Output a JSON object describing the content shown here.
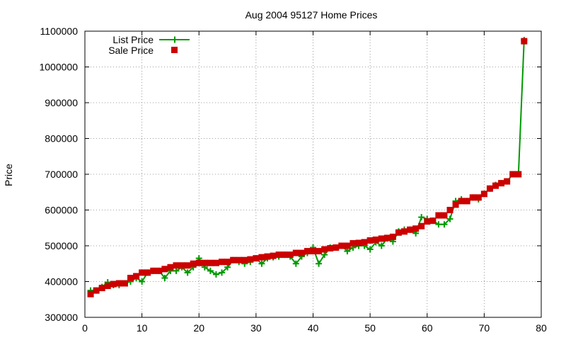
{
  "chart_data": {
    "type": "line",
    "title": "Aug 2004 95127 Home Prices",
    "xlabel": "",
    "ylabel": "Price",
    "xlim": [
      0,
      80
    ],
    "ylim": [
      300000,
      1100000
    ],
    "grid": true,
    "legend_position": "top-left",
    "x_ticks": [
      "0",
      "10",
      "20",
      "30",
      "40",
      "50",
      "60",
      "70",
      "80"
    ],
    "y_ticks": [
      "300000",
      "400000",
      "500000",
      "600000",
      "700000",
      "800000",
      "900000",
      "1000000",
      "1100000"
    ],
    "colors": {
      "list": "#009900",
      "sale": "#cc0000"
    },
    "series": [
      {
        "name": "List Price",
        "style": "linespoints",
        "marker": "plus",
        "x": [
          1,
          2,
          3,
          4,
          5,
          6,
          7,
          8,
          9,
          10,
          11,
          12,
          13,
          14,
          15,
          16,
          17,
          18,
          19,
          20,
          21,
          22,
          23,
          24,
          25,
          26,
          27,
          28,
          29,
          30,
          31,
          32,
          33,
          34,
          35,
          36,
          37,
          38,
          39,
          40,
          41,
          42,
          43,
          44,
          45,
          46,
          47,
          48,
          49,
          50,
          51,
          52,
          53,
          54,
          55,
          56,
          57,
          58,
          59,
          60,
          61,
          62,
          63,
          64,
          65,
          66,
          67,
          68,
          69,
          70,
          71,
          72,
          73,
          74,
          75,
          76,
          77
        ],
        "values": [
          375000,
          375000,
          385000,
          398000,
          390000,
          390000,
          395000,
          400000,
          410000,
          400000,
          425000,
          430000,
          430000,
          410000,
          430000,
          430000,
          440000,
          425000,
          440000,
          465000,
          440000,
          430000,
          420000,
          425000,
          440000,
          460000,
          455000,
          450000,
          455000,
          465000,
          450000,
          465000,
          468000,
          470000,
          475000,
          470000,
          450000,
          470000,
          480000,
          495000,
          450000,
          475000,
          495000,
          495000,
          500000,
          485000,
          495000,
          500000,
          500000,
          490000,
          510000,
          500000,
          520000,
          512000,
          540000,
          545000,
          545000,
          535000,
          580000,
          575000,
          570000,
          560000,
          560000,
          575000,
          625000,
          630000,
          625000,
          635000,
          630000,
          645000,
          660000,
          670000,
          675000,
          680000,
          700000,
          700000,
          1075000
        ]
      },
      {
        "name": "Sale Price",
        "style": "points",
        "marker": "square",
        "x": [
          1,
          2,
          3,
          4,
          5,
          6,
          7,
          8,
          9,
          10,
          11,
          12,
          13,
          14,
          15,
          16,
          17,
          18,
          19,
          20,
          21,
          22,
          23,
          24,
          25,
          26,
          27,
          28,
          29,
          30,
          31,
          32,
          33,
          34,
          35,
          36,
          37,
          38,
          39,
          40,
          41,
          42,
          43,
          44,
          45,
          46,
          47,
          48,
          49,
          50,
          51,
          52,
          53,
          54,
          55,
          56,
          57,
          58,
          59,
          60,
          61,
          62,
          63,
          64,
          65,
          66,
          67,
          68,
          69,
          70,
          71,
          72,
          73,
          74,
          75,
          76,
          77
        ],
        "values": [
          365000,
          375000,
          382000,
          388000,
          393000,
          395000,
          395000,
          410000,
          415000,
          425000,
          425000,
          430000,
          430000,
          435000,
          440000,
          445000,
          445000,
          445000,
          450000,
          452000,
          452000,
          452000,
          452000,
          455000,
          455000,
          460000,
          460000,
          460000,
          462000,
          465000,
          468000,
          470000,
          472000,
          475000,
          475000,
          475000,
          480000,
          480000,
          485000,
          485000,
          485000,
          490000,
          493000,
          495000,
          500000,
          500000,
          507000,
          508000,
          510000,
          515000,
          517000,
          520000,
          522000,
          525000,
          537000,
          540000,
          545000,
          548000,
          555000,
          568000,
          570000,
          585000,
          585000,
          600000,
          615000,
          625000,
          625000,
          635000,
          635000,
          645000,
          660000,
          668000,
          675000,
          680000,
          700000,
          700000,
          1072000
        ]
      }
    ]
  }
}
